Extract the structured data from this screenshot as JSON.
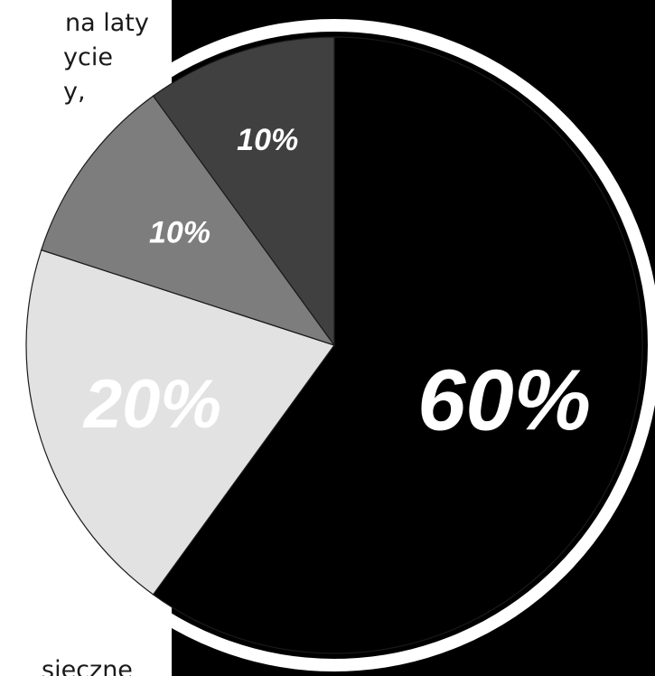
{
  "page_text": {
    "line1": "na laty",
    "line2": "ycie",
    "line3": "y,",
    "line4": "sieczne"
  },
  "colors": {
    "panel": "#000000",
    "ring": "#ffffff",
    "slice_edge": "#1a1a1a"
  },
  "chart_data": {
    "type": "pie",
    "values": [
      60,
      20,
      10,
      10
    ],
    "labels": [
      "60%",
      "20%",
      "10%",
      "10%"
    ],
    "colors": [
      "#000000",
      "#e2e2e2",
      "#7d7d7d",
      "#404040"
    ],
    "label_colors": [
      "#ffffff",
      "#ffffff",
      "#ffffff",
      "#ffffff"
    ],
    "start": "top",
    "direction": "clockwise",
    "title": "",
    "legend": "none"
  }
}
